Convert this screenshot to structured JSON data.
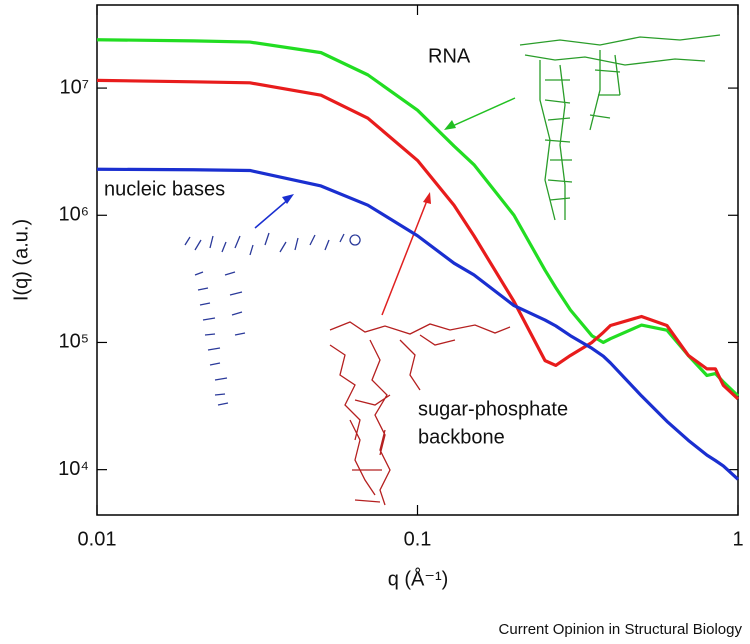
{
  "chart_data": {
    "type": "line",
    "x_label": "q (Å⁻¹)",
    "y_label": "I(q) (a.u.)",
    "source": "Current Opinion in Structural Biology",
    "annotations": [
      "RNA",
      "nucleic bases",
      "sugar-phosphate",
      "backbone"
    ],
    "xscale": "log",
    "yscale": "log",
    "xlim": [
      0.01,
      1
    ],
    "ylim": [
      4400,
      45000000
    ],
    "xticks": [
      0.01,
      0.1,
      1
    ],
    "yticks": [
      {
        "value": 10000,
        "label": "10⁴"
      },
      {
        "value": 100000,
        "label": "10⁵"
      },
      {
        "value": 1000000,
        "label": "10⁶"
      },
      {
        "value": 10000000,
        "label": "10⁷"
      }
    ],
    "x": [
      0.01,
      0.02,
      0.03,
      0.05,
      0.07,
      0.1,
      0.13,
      0.15,
      0.2,
      0.25,
      0.27,
      0.3,
      0.35,
      0.38,
      0.4,
      0.5,
      0.6,
      0.7,
      0.8,
      0.85,
      0.9,
      1
    ],
    "series": [
      {
        "name": "RNA",
        "color": "#22dd22",
        "values": [
          24000000,
          23500000,
          23000000,
          19000000,
          12700000,
          6700000,
          3500000,
          2500000,
          1000000,
          370000,
          270000,
          180000,
          113000,
          100000,
          107000,
          137000,
          125000,
          79000,
          55000,
          57000,
          49000,
          38000
        ]
      },
      {
        "name": "sugar-phosphate backbone",
        "color": "#e81c1c",
        "values": [
          11500000,
          11200000,
          11000000,
          8800000,
          5800000,
          2700000,
          1200000,
          690000,
          210000,
          72000,
          66000,
          79000,
          100000,
          120000,
          136000,
          160000,
          136000,
          79000,
          62000,
          62000,
          46000,
          36000
        ]
      },
      {
        "name": "nucleic bases",
        "color": "#1a2fd0",
        "values": [
          2300000,
          2280000,
          2250000,
          1700000,
          1200000,
          690000,
          420000,
          340000,
          195000,
          150000,
          135000,
          113000,
          90000,
          78000,
          69000,
          38000,
          24000,
          17000,
          13000,
          11800,
          10700,
          8400
        ]
      }
    ]
  }
}
